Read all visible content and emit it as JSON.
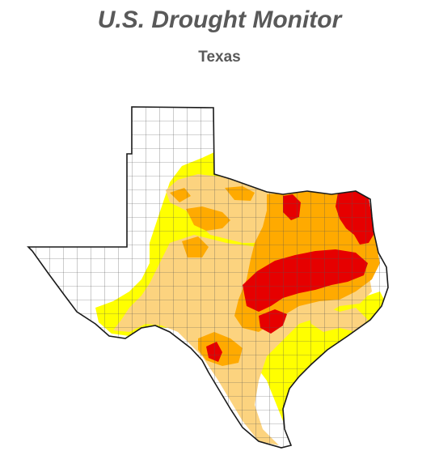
{
  "header": {
    "title": "U.S. Drought Monitor",
    "subtitle": "Texas"
  },
  "colors": {
    "none": "#ffffff",
    "d0_abnormally_dry": "#ffff00",
    "d1_moderate": "#fcd37f",
    "d2_severe": "#ffaa00",
    "d3_extreme": "#e60000",
    "county_line": "#4a4a4a",
    "state_outline": "#1a1a1a"
  }
}
